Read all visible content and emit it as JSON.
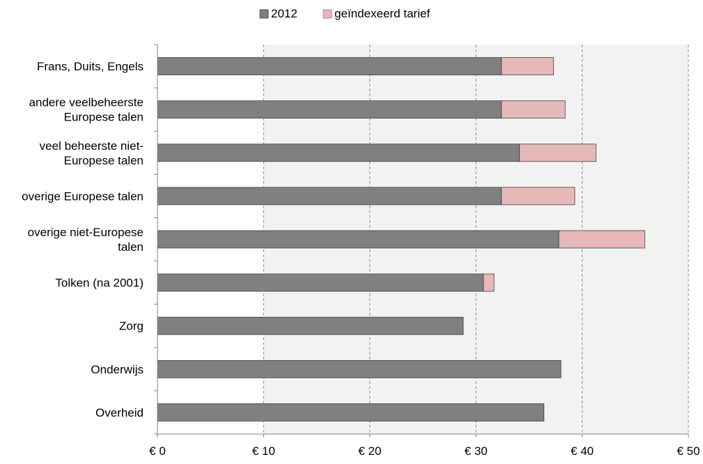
{
  "chart_data": {
    "type": "bar",
    "orientation": "horizontal",
    "stacked": true,
    "title": "",
    "xlabel": "",
    "ylabel": "",
    "xlim": [
      0,
      50
    ],
    "x_ticks": [
      {
        "value": 0,
        "label": "€ 0"
      },
      {
        "value": 10,
        "label": "€ 10"
      },
      {
        "value": 20,
        "label": "€ 20"
      },
      {
        "value": 30,
        "label": "€ 30"
      },
      {
        "value": 40,
        "label": "€ 40"
      },
      {
        "value": 50,
        "label": "€ 50"
      }
    ],
    "grid": "vertical dashed",
    "legend_position": "top-center",
    "categories": [
      [
        "Frans, Duits, Engels"
      ],
      [
        "andere veelbeheerste",
        "Europese talen"
      ],
      [
        "veel beheerste niet-",
        "Europese talen"
      ],
      [
        "overige Europese talen"
      ],
      [
        "overige niet-Europese",
        "talen"
      ],
      [
        "Tolken (na 2001)"
      ],
      [
        "Zorg"
      ],
      [
        "Onderwijs"
      ],
      [
        "Overheid"
      ]
    ],
    "series": [
      {
        "name": "2012",
        "color": "#808080",
        "values": [
          32.4,
          32.4,
          34.1,
          32.4,
          37.8,
          30.7,
          28.8,
          38.0,
          36.4
        ]
      },
      {
        "name": "geïndexeerd tarief",
        "color": "#e6b8b8",
        "values": [
          4.9,
          6.0,
          7.2,
          6.9,
          8.1,
          1.0,
          0,
          0,
          0
        ]
      }
    ]
  }
}
